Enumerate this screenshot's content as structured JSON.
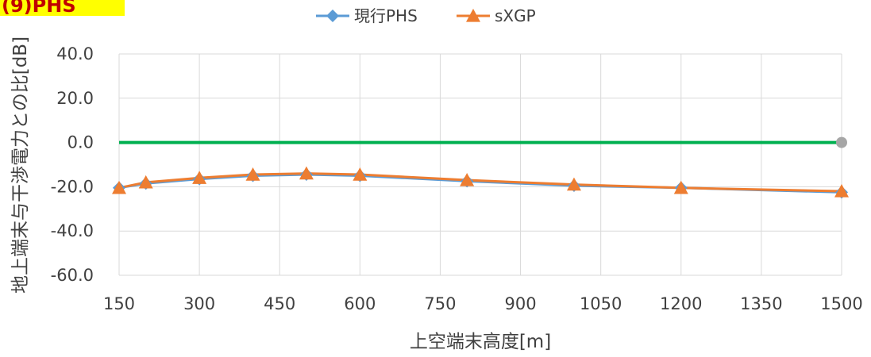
{
  "panel_label": "(9)PHS",
  "chart_data": {
    "type": "line",
    "title": "",
    "xlabel": "上空端末高度[m]",
    "ylabel": "地上端末与干渉電力との比[dB]",
    "x_ticks": [
      "150",
      "300",
      "450",
      "600",
      "750",
      "900",
      "1050",
      "1200",
      "1350",
      "1500"
    ],
    "y_ticks": [
      "40.0",
      "20.0",
      "0.0",
      "-20.0",
      "-40.0",
      "-60.0"
    ],
    "xlim": [
      150,
      1500
    ],
    "ylim": [
      -60,
      40
    ],
    "grid": true,
    "legend_position": "top-center",
    "series": [
      {
        "name": "現行PHS",
        "color": "#5b9bd5",
        "marker": "diamond",
        "x": [
          150,
          200,
          300,
          400,
          500,
          600,
          800,
          1000,
          1200,
          1500
        ],
        "y": [
          -20.5,
          -18.5,
          -16.5,
          -15.0,
          -14.5,
          -15.0,
          -17.5,
          -19.5,
          -20.5,
          -22.5
        ]
      },
      {
        "name": "sXGP",
        "color": "#ed7d31",
        "marker": "triangle",
        "x": [
          150,
          200,
          300,
          400,
          500,
          600,
          800,
          1000,
          1200,
          1500
        ],
        "y": [
          -20.5,
          -18.0,
          -16.0,
          -14.5,
          -14.0,
          -14.5,
          -17.0,
          -19.0,
          -20.5,
          -22.0
        ]
      }
    ],
    "reference_line": {
      "y": 0,
      "color": "#00b050",
      "end_marker_color": "#a6a6a6"
    }
  }
}
